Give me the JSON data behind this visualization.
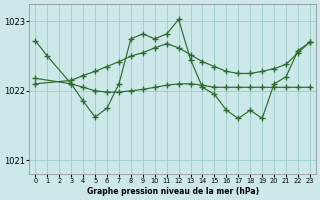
{
  "title": "Graphe pression niveau de la mer (hPa)",
  "bg_color": "#cce8e8",
  "grid_color": "#99cccc",
  "line_color": "#2d6a2d",
  "marker": "+",
  "xlim": [
    -0.5,
    23.5
  ],
  "ylim": [
    1020.8,
    1023.25
  ],
  "yticks": [
    1021,
    1022,
    1023
  ],
  "xticks": [
    0,
    1,
    2,
    3,
    4,
    5,
    6,
    7,
    8,
    9,
    10,
    11,
    12,
    13,
    14,
    15,
    16,
    17,
    18,
    19,
    20,
    21,
    22,
    23
  ],
  "series1_x": [
    0,
    1,
    3,
    4,
    5,
    6,
    7,
    8,
    9,
    10,
    11,
    12,
    13,
    14,
    15,
    16,
    17,
    18,
    19,
    20,
    21,
    22,
    23
  ],
  "series1_y": [
    1022.72,
    1022.5,
    1022.1,
    1021.85,
    1021.62,
    1021.75,
    1022.1,
    1022.75,
    1022.82,
    1022.75,
    1022.82,
    1023.03,
    1022.45,
    1022.05,
    1021.95,
    1021.72,
    1021.6,
    1021.72,
    1021.6,
    1022.1,
    1022.2,
    1022.58,
    1022.7
  ],
  "series2_x": [
    0,
    3,
    4,
    5,
    6,
    7,
    8,
    9,
    10,
    11,
    12,
    13,
    14,
    15,
    16,
    17,
    18,
    19,
    20,
    21,
    22,
    23
  ],
  "series2_y": [
    1022.18,
    1022.1,
    1022.05,
    1022.0,
    1021.98,
    1021.98,
    1022.0,
    1022.02,
    1022.05,
    1022.08,
    1022.1,
    1022.1,
    1022.08,
    1022.05,
    1022.05,
    1022.05,
    1022.05,
    1022.05,
    1022.05,
    1022.05,
    1022.05,
    1022.05
  ],
  "series3_x": [
    0,
    3,
    4,
    5,
    6,
    7,
    8,
    9,
    10,
    11,
    12,
    13,
    14,
    15,
    16,
    17,
    18,
    19,
    20,
    21,
    22,
    23
  ],
  "series3_y": [
    1022.1,
    1022.15,
    1022.22,
    1022.28,
    1022.35,
    1022.42,
    1022.5,
    1022.55,
    1022.62,
    1022.68,
    1022.62,
    1022.52,
    1022.42,
    1022.35,
    1022.28,
    1022.25,
    1022.25,
    1022.28,
    1022.32,
    1022.38,
    1022.55,
    1022.7
  ]
}
